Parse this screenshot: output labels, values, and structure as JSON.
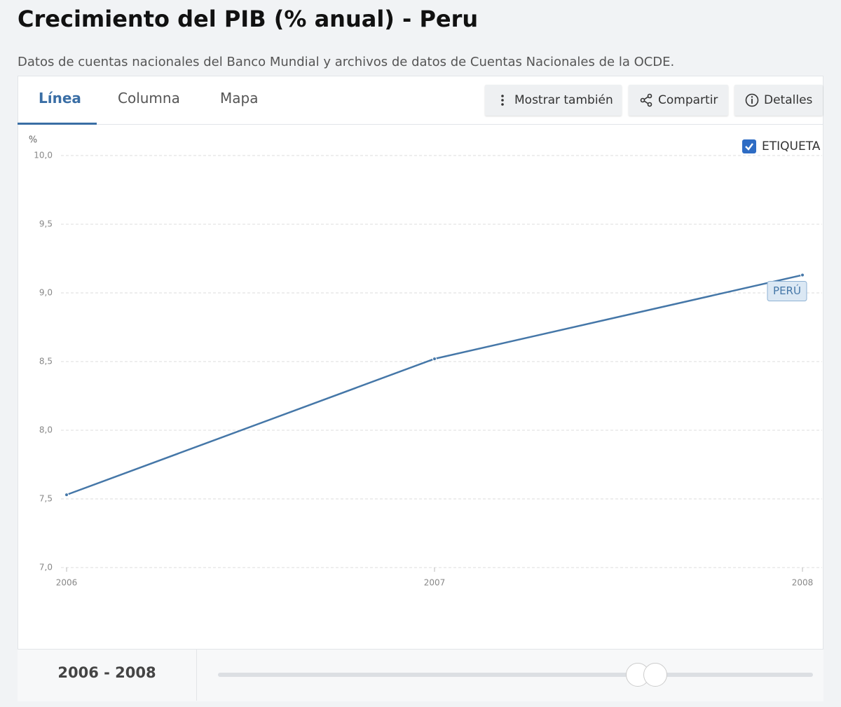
{
  "header": {
    "title": "Crecimiento del PIB (% anual) - Peru",
    "subtitle": "Datos de cuentas nacionales del Banco Mundial y archivos de datos de Cuentas Nacionales de la OCDE."
  },
  "tabs": [
    "Línea",
    "Columna",
    "Mapa"
  ],
  "buttons": [
    "Mostrar también",
    "Compartir",
    "Detalles"
  ],
  "checkbox_label": "ETIQUETA",
  "range_label": "2006 - 2008",
  "chart_data": {
    "type": "line",
    "y_label": "%",
    "x": [
      2006,
      2007,
      2008
    ],
    "series": [
      {
        "name": "PERÚ",
        "color": "#4577a8",
        "values": [
          7.53,
          8.52,
          9.13
        ]
      }
    ],
    "xlim": [
      2006,
      2008
    ],
    "xticks": [
      2006,
      2007,
      2008
    ],
    "ylim": [
      7,
      10
    ],
    "yticks": [
      {
        "value": 7,
        "label": "7,0"
      },
      {
        "value": 7.5,
        "label": "7,5"
      },
      {
        "value": 8,
        "label": "8,0"
      },
      {
        "value": 8.5,
        "label": "8,5"
      },
      {
        "value": 9,
        "label": "9,0"
      },
      {
        "value": 9.5,
        "label": "9,5"
      },
      {
        "value": 10,
        "label": "10,0"
      }
    ],
    "grid": true
  }
}
